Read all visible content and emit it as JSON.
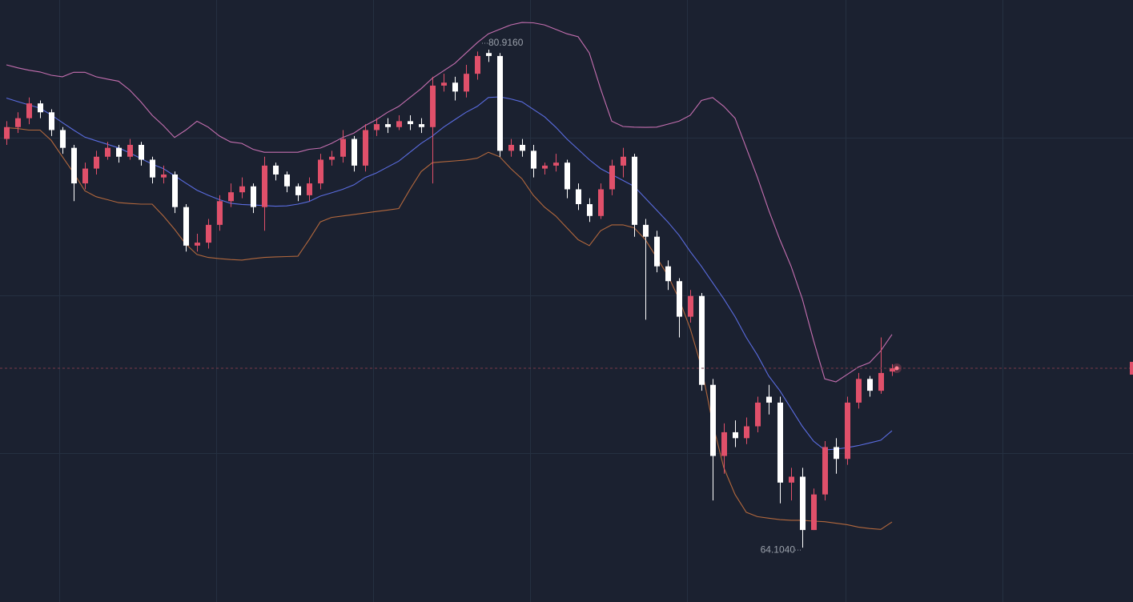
{
  "chart_data": {
    "type": "candlestick",
    "ylim": [
      62.27,
      82.59
    ],
    "up_color": "#e0506a",
    "down_color": "#ffffff",
    "open": [
      77.9,
      78.3,
      78.6,
      79.1,
      78.8,
      78.2,
      77.6,
      76.4,
      76.9,
      77.3,
      77.6,
      77.3,
      77.7,
      77.2,
      76.6,
      76.7,
      75.6,
      74.3,
      74.4,
      75.0,
      75.8,
      76.1,
      76.3,
      75.6,
      77.0,
      76.7,
      76.3,
      76.0,
      76.4,
      77.2,
      77.3,
      77.9,
      77.0,
      78.2,
      78.4,
      78.3,
      78.5,
      78.4,
      78.3,
      79.7,
      79.8,
      79.5,
      80.1,
      80.8,
      80.7,
      77.5,
      77.7,
      77.5,
      76.9,
      77.0,
      77.1,
      76.2,
      75.7,
      75.3,
      76.2,
      77.0,
      77.3,
      75.0,
      74.6,
      73.6,
      73.1,
      71.9,
      72.6,
      69.6,
      67.2,
      68.0,
      67.8,
      68.2,
      69.2,
      69.0,
      66.3,
      66.5,
      64.7,
      65.9,
      67.5,
      67.1,
      69.0,
      69.8,
      69.4,
      70.05
    ],
    "high": [
      78.5,
      78.8,
      79.3,
      79.2,
      78.9,
      78.3,
      77.7,
      77.1,
      77.5,
      77.8,
      77.7,
      77.9,
      77.8,
      77.3,
      77.0,
      76.8,
      75.7,
      74.7,
      75.2,
      76.0,
      76.4,
      76.6,
      76.4,
      77.3,
      77.1,
      76.8,
      76.4,
      76.6,
      77.4,
      77.5,
      78.2,
      78.0,
      78.4,
      78.6,
      78.6,
      78.7,
      78.7,
      78.6,
      80.0,
      80.1,
      80.0,
      80.4,
      80.85,
      80.916,
      80.8,
      77.9,
      77.9,
      77.7,
      77.1,
      77.4,
      77.2,
      76.4,
      75.9,
      76.4,
      77.2,
      77.6,
      77.4,
      75.2,
      74.8,
      73.8,
      73.2,
      72.8,
      72.7,
      69.8,
      68.3,
      68.4,
      68.5,
      69.2,
      69.6,
      69.2,
      66.8,
      66.8,
      66.1,
      67.7,
      67.8,
      69.2,
      70.0,
      69.9,
      71.2,
      70.3
    ],
    "low": [
      77.7,
      78.1,
      78.4,
      78.6,
      78.0,
      77.4,
      75.8,
      76.2,
      76.7,
      77.2,
      77.1,
      77.2,
      77.0,
      76.4,
      76.4,
      75.4,
      74.1,
      74.1,
      74.2,
      74.8,
      75.6,
      75.9,
      75.4,
      74.8,
      76.5,
      76.1,
      75.8,
      75.8,
      76.2,
      77.0,
      77.1,
      76.8,
      76.8,
      78.0,
      78.1,
      78.2,
      78.2,
      78.1,
      76.4,
      79.5,
      79.2,
      79.3,
      79.9,
      80.5,
      77.3,
      77.3,
      77.3,
      76.6,
      76.7,
      76.8,
      75.9,
      75.5,
      75.1,
      75.2,
      76.0,
      76.6,
      74.6,
      71.8,
      73.4,
      72.8,
      71.2,
      71.7,
      69.4,
      65.7,
      66.6,
      67.5,
      67.6,
      68.0,
      68.6,
      65.6,
      65.7,
      64.104,
      64.7,
      65.7,
      66.6,
      66.9,
      68.8,
      69.2,
      69.3,
      69.9
    ],
    "close": [
      78.3,
      78.6,
      79.1,
      78.8,
      78.2,
      77.6,
      76.4,
      76.9,
      77.3,
      77.6,
      77.3,
      77.7,
      77.2,
      76.6,
      76.7,
      75.6,
      74.3,
      74.4,
      75.0,
      75.8,
      76.1,
      76.3,
      75.6,
      77.0,
      76.7,
      76.3,
      76.0,
      76.4,
      77.2,
      77.3,
      77.9,
      77.0,
      78.2,
      78.4,
      78.3,
      78.5,
      78.4,
      78.3,
      79.7,
      79.8,
      79.5,
      80.1,
      80.7,
      80.7,
      77.5,
      77.7,
      77.5,
      76.9,
      77.0,
      77.1,
      76.2,
      75.7,
      75.3,
      76.2,
      77.0,
      77.3,
      75.0,
      74.6,
      73.6,
      73.1,
      71.9,
      72.6,
      69.6,
      67.2,
      68.0,
      67.8,
      68.2,
      69.0,
      69.0,
      66.3,
      66.5,
      64.7,
      65.9,
      67.5,
      67.1,
      69.0,
      69.8,
      69.4,
      70.0,
      70.16
    ],
    "bands": [
      {
        "color": "#c56fb0",
        "values": [
          80.4,
          80.3,
          80.22,
          80.16,
          80.05,
          80.0,
          80.15,
          80.15,
          80.0,
          79.92,
          79.85,
          79.55,
          79.15,
          78.7,
          78.35,
          77.95,
          78.2,
          78.5,
          78.3,
          78.0,
          77.8,
          77.75,
          77.55,
          77.45,
          77.45,
          77.45,
          77.45,
          77.55,
          77.59,
          77.75,
          77.95,
          78.1,
          78.35,
          78.55,
          78.8,
          79.0,
          79.3,
          79.6,
          79.95,
          80.2,
          80.45,
          80.8,
          81.15,
          81.45,
          81.6,
          81.75,
          81.83,
          81.82,
          81.75,
          81.6,
          81.45,
          81.35,
          80.8,
          79.6,
          78.5,
          78.32,
          78.3,
          78.29,
          78.3,
          78.4,
          78.5,
          78.7,
          79.2,
          79.3,
          79.0,
          78.6,
          77.6,
          76.6,
          75.5,
          74.5,
          73.6,
          72.5,
          71.1,
          69.8,
          69.7,
          69.95,
          70.2,
          70.35,
          70.75,
          71.3
        ]
      },
      {
        "color": "#5a6ce0",
        "values": [
          79.28,
          79.16,
          79.05,
          78.94,
          78.71,
          78.45,
          78.2,
          77.96,
          77.84,
          77.72,
          77.6,
          77.43,
          77.24,
          77.05,
          76.9,
          76.66,
          76.41,
          76.17,
          76.0,
          75.85,
          75.73,
          75.69,
          75.67,
          75.65,
          75.63,
          75.64,
          75.7,
          75.79,
          75.97,
          76.08,
          76.2,
          76.35,
          76.6,
          76.75,
          76.95,
          77.15,
          77.45,
          77.75,
          78.0,
          78.3,
          78.55,
          78.8,
          79.0,
          79.3,
          79.32,
          79.25,
          79.15,
          78.9,
          78.65,
          78.3,
          77.9,
          77.55,
          77.2,
          76.9,
          76.7,
          76.5,
          76.3,
          75.9,
          75.5,
          75.1,
          74.65,
          74.1,
          73.6,
          73.05,
          72.5,
          71.9,
          71.2,
          70.6,
          69.9,
          69.4,
          68.8,
          68.2,
          67.7,
          67.4,
          67.43,
          67.48,
          67.55,
          67.64,
          67.73,
          68.05
        ]
      },
      {
        "color": "#b3683d",
        "values": [
          78.28,
          78.25,
          78.2,
          78.2,
          77.85,
          77.3,
          76.75,
          76.15,
          75.95,
          75.85,
          75.75,
          75.72,
          75.7,
          75.7,
          75.3,
          74.85,
          74.35,
          74.0,
          73.9,
          73.86,
          73.83,
          73.81,
          73.86,
          73.9,
          73.92,
          73.93,
          73.94,
          74.5,
          75.1,
          75.25,
          75.3,
          75.35,
          75.4,
          75.45,
          75.5,
          75.55,
          76.2,
          76.8,
          77.1,
          77.13,
          77.16,
          77.19,
          77.25,
          77.45,
          77.3,
          76.9,
          76.55,
          76.0,
          75.6,
          75.3,
          74.9,
          74.5,
          74.3,
          74.8,
          75.0,
          75.0,
          74.9,
          74.5,
          73.9,
          73.3,
          72.5,
          71.5,
          70.2,
          68.3,
          66.8,
          65.9,
          65.3,
          65.15,
          65.1,
          65.05,
          65.03,
          65.03,
          65.0,
          64.98,
          64.93,
          64.88,
          64.8,
          64.75,
          64.72,
          64.97
        ]
      }
    ],
    "extreme_labels": [
      {
        "value": 80.916,
        "label": "80.9160"
      },
      {
        "value": 64.104,
        "label": "64.1040"
      }
    ]
  }
}
